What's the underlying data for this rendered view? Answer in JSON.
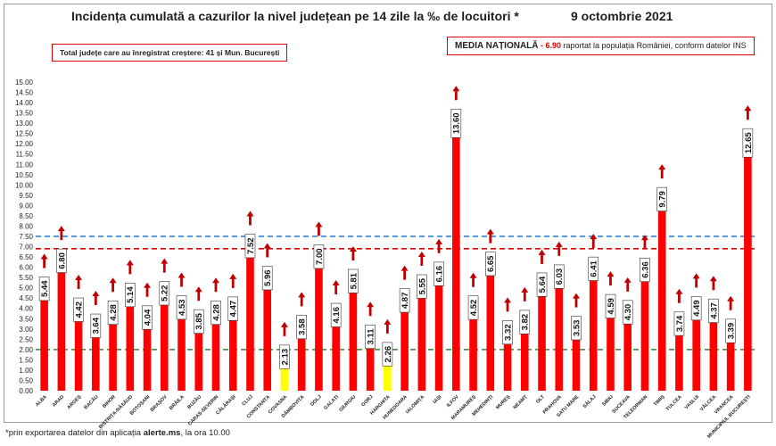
{
  "header": {
    "title": "Incidența cumulată a cazurilor la nivel județean pe 14 zile la ‰ de locuitori *",
    "date": "9 octombrie 2021"
  },
  "growth_box": {
    "text": "Total județe care au înregistrat creștere:  41 și Mun. București"
  },
  "national_box": {
    "label": "MEDIA NAȚIONALĂ",
    "value": " - 6.90",
    "suffix": " raportat la populația României, conform datelor INS"
  },
  "footnote": {
    "prefix": "*prin exportarea datelor din aplicația ",
    "app": "alerte.ms",
    "suffix": ", la ora 10.00"
  },
  "colors": {
    "bar": "#ff0000",
    "bar_highlight": "#ffff00",
    "arrow": "#c00000",
    "national_line": "#e00000",
    "upper_line": "#1f78c8",
    "lower_line": "#2e8b2e"
  },
  "chart_data": {
    "type": "bar",
    "title": "Incidența cumulată a cazurilor la nivel județean pe 14 zile la ‰ de locuitori *",
    "ylim": [
      0,
      15
    ],
    "ytick_step": 0.5,
    "grid": false,
    "reference_lines": [
      {
        "name": "Media națională",
        "value": 6.9,
        "color": "#e00000"
      },
      {
        "name": "upper-threshold",
        "value": 7.5,
        "color": "#1f78c8"
      },
      {
        "name": "lower-threshold",
        "value": 2.0,
        "color": "#2e8b2e"
      }
    ],
    "categories": [
      "ALBA",
      "ARAD",
      "ARGEȘ",
      "BACĂU",
      "BIHOR",
      "BISTRIȚA-NĂSĂUD",
      "BOTOȘANI",
      "BRAȘOV",
      "BRĂILA",
      "BUZĂU",
      "CARAȘ-SEVERIN",
      "CĂLĂRAȘI",
      "CLUJ",
      "CONSTANȚA",
      "COVASNA",
      "DÂMBOVIȚA",
      "DOLJ",
      "GALAȚI",
      "GIURGIU",
      "GORJ",
      "HARGHITA",
      "HUNEDOARA",
      "IALOMIȚA",
      "IAȘI",
      "ILFOV",
      "MARAMUREȘ",
      "MEHEDINȚI",
      "MUREȘ",
      "NEAMȚ",
      "OLT",
      "PRAHOVA",
      "SATU MARE",
      "SĂLAJ",
      "SIBIU",
      "SUCEAVA",
      "TELEORMAN",
      "TIMIȘ",
      "TULCEA",
      "VASLUI",
      "VÂLCEA",
      "VRANCEA",
      "MUNICIPIUL BUCUREȘTI"
    ],
    "values": [
      5.44,
      6.8,
      4.42,
      3.64,
      4.28,
      5.14,
      4.04,
      5.22,
      4.53,
      3.85,
      4.28,
      4.47,
      7.52,
      5.96,
      2.13,
      3.58,
      7.0,
      4.16,
      5.81,
      3.11,
      2.26,
      4.87,
      5.55,
      6.16,
      13.6,
      4.52,
      6.65,
      3.32,
      3.82,
      5.64,
      6.03,
      3.53,
      6.41,
      4.59,
      4.3,
      6.36,
      9.79,
      3.74,
      4.49,
      4.37,
      3.39,
      12.65
    ],
    "value_labels": [
      "5.44",
      "6.80",
      "4.42",
      "3.64",
      "4.28",
      "5.14",
      "4.04",
      "5.22",
      "4.53",
      "3.85",
      "4.28",
      "4.47",
      "7.52",
      "5.96",
      "2.13",
      "3.58",
      "7.00",
      "4.16",
      "5.81",
      "3.11",
      "2.26",
      "4.87",
      "5.55",
      "6.16",
      "13.60",
      "4.52",
      "6.65",
      "3.32",
      "3.82",
      "5.64",
      "6.03",
      "3.53",
      "6.41",
      "4.59",
      "4.30",
      "6.36",
      "9.79",
      "3.74",
      "4.49",
      "4.37",
      "3.39",
      "12.65"
    ],
    "highlight": [
      "COVASNA",
      "HARGHITA"
    ]
  }
}
